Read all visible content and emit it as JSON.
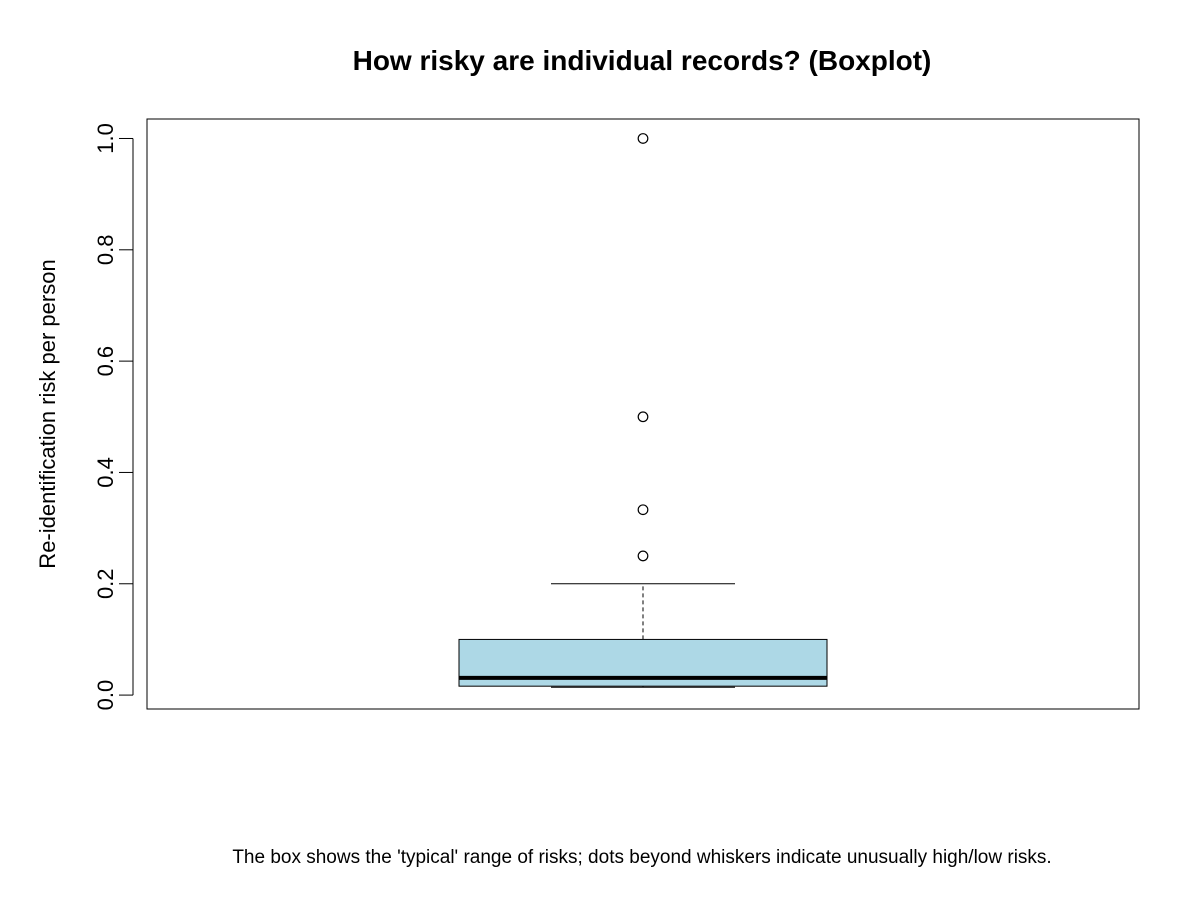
{
  "chart_data": {
    "type": "boxplot",
    "title": "How risky are individual records? (Boxplot)",
    "xlabel": "",
    "ylabel": "Re-identification risk per person",
    "caption": "The box shows the 'typical' range of risks; dots beyond whiskers indicate unusually high/low risks.",
    "ylim": [
      -0.025,
      1.035
    ],
    "yticks": [
      {
        "value": 0.0,
        "label": "0.0"
      },
      {
        "value": 0.2,
        "label": "0.2"
      },
      {
        "value": 0.4,
        "label": "0.4"
      },
      {
        "value": 0.6,
        "label": "0.6"
      },
      {
        "value": 0.8,
        "label": "0.8"
      },
      {
        "value": 1.0,
        "label": "1.0"
      }
    ],
    "box": {
      "whisker_low": 0.014,
      "q1": 0.016,
      "median": 0.031,
      "q3": 0.1,
      "whisker_high": 0.2
    },
    "outliers": [
      1.0,
      0.5,
      0.333,
      0.25
    ],
    "box_color": "#ADD8E6",
    "grid": false,
    "legend": "none"
  }
}
